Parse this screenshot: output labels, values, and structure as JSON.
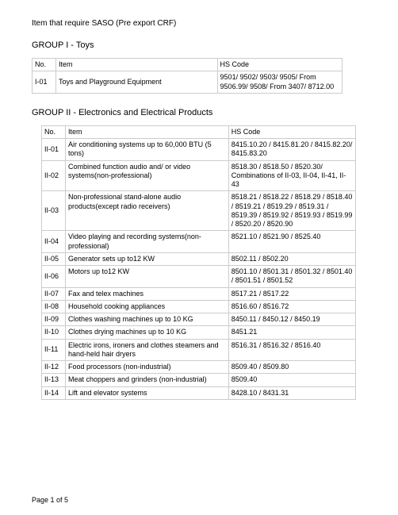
{
  "title": "Item that require SASO (Pre export CRF)",
  "group1_heading": "GROUP I - Toys",
  "group2_heading": "GROUP II - Electronics and Electrical Products",
  "headers": {
    "no": "No.",
    "item": "Item",
    "hs": "HS Code"
  },
  "group1_rows": [
    {
      "no": "I-01",
      "item": "Toys and Playground Equipment",
      "hs": "9501/ 9502/ 9503/ 9505/ From 9506.99/ 9508/ From 3407/ 8712.00"
    }
  ],
  "group2_rows": [
    {
      "no": "II-01",
      "item": "Air conditioning systems up to 60,000 BTU (5 tons)",
      "hs": "8415.10.20 /  8415.81.20 /  8415.82.20/  8415.83.20"
    },
    {
      "no": "II-02",
      "item": "Combined function audio and/ or video systems(non-professional)",
      "hs": "8518.30 /  8518.50 /  8520.30/  Combinations of II-03, II-04, II-41, II-43"
    },
    {
      "no": "II-03",
      "item": "Non-professional stand-alone audio products(except radio receivers)",
      "hs": "8518.21 /  8518.22 /  8518.29 /  8518.40 /  8519.21 /  8519.29 /  8519.31 /  8519.39 /  8519.92 /  8519.93 /  8519.99 /  8520.20 /  8520.90"
    },
    {
      "no": "II-04",
      "item": "Video playing and recording systems(non-professional)",
      "hs": "8521.10 /  8521.90 /  8525.40"
    },
    {
      "no": "II-05",
      "item": "Generator sets up to12 KW",
      "hs": "8502.11 /  8502.20"
    },
    {
      "no": "II-06",
      "item": "Motors up to12 KW",
      "hs": "8501.10 /  8501.31 /  8501.32 /  8501.40 /  8501.51 /  8501.52"
    },
    {
      "no": "II-07",
      "item": "Fax and telex machines",
      "hs": "8517.21 /  8517.22"
    },
    {
      "no": "II-08",
      "item": "Household cooking appliances",
      "hs": "8516.60 /  8516.72"
    },
    {
      "no": "II-09",
      "item": "Clothes washing machines up to 10 KG",
      "hs": "8450.11 /  8450.12 /  8450.19"
    },
    {
      "no": "II-10",
      "item": "Clothes drying machines up to 10 KG",
      "hs": "8451.21"
    },
    {
      "no": "II-11",
      "item": "Electric irons, ironers and clothes steamers and hand-held hair dryers",
      "hs": "8516.31 /  8516.32 /  8516.40"
    },
    {
      "no": "II-12",
      "item": "Food processors (non-industrial)",
      "hs": "8509.40 /  8509.80"
    },
    {
      "no": "II-13",
      "item": "Meat choppers and grinders (non-industrial)",
      "hs": "8509.40"
    },
    {
      "no": "II-14",
      "item": "Lift and elevator systems",
      "hs": "8428.10 /  8431.31"
    }
  ],
  "footer": "Page 1 of 5"
}
